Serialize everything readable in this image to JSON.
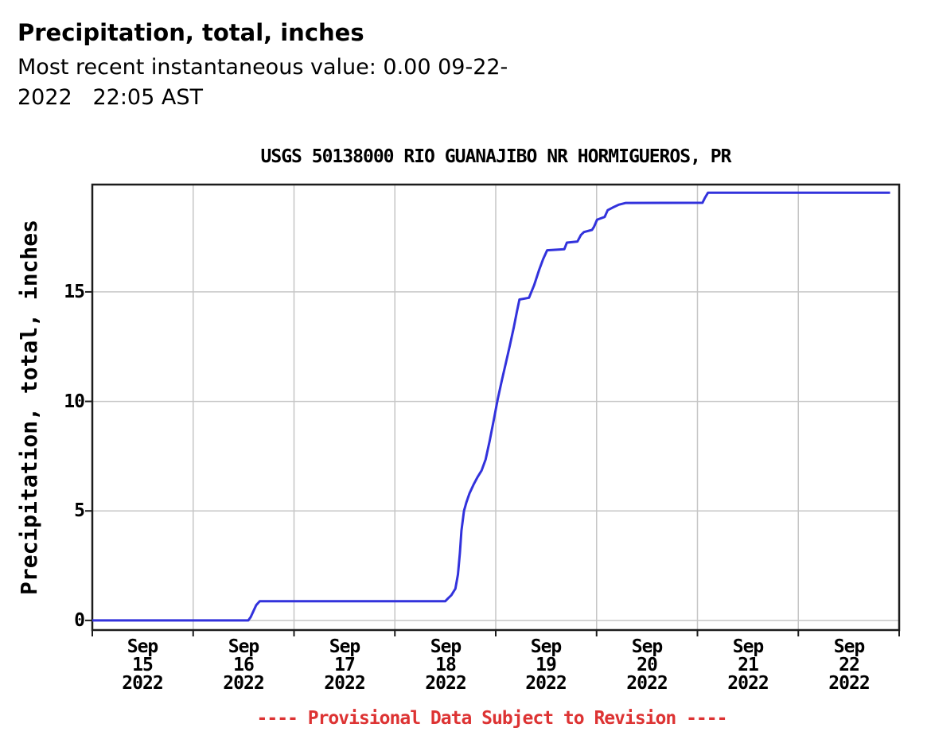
{
  "header": {
    "title": "Precipitation, total, inches",
    "subtitle_line1": "Most recent instantaneous value: 0.00 09-22-",
    "subtitle_line2": "2022   22:05 AST"
  },
  "chart_data": {
    "type": "line",
    "title": "USGS 50138000 RIO GUANAJIBO NR HORMIGUEROS, PR",
    "ylabel": "Precipitation, total, inches",
    "footer_note": "---- Provisional Data Subject to Revision ----",
    "x_start": "Sep 15 2022 00:00",
    "x_unit": "days",
    "xlim": [
      0,
      8
    ],
    "ylim": [
      -0.44,
      19.9
    ],
    "grid": true,
    "y_ticks": [
      0,
      5,
      10,
      15
    ],
    "y_tick_labels": [
      "0",
      "5",
      "10",
      "15"
    ],
    "x_gridline_days": [
      1,
      2,
      3,
      4,
      5,
      6,
      7
    ],
    "x_axis_tick_days": [
      0,
      1,
      2,
      3,
      4,
      5,
      6,
      7,
      8
    ],
    "x_tick_labels": [
      {
        "line1": "Sep",
        "line2": "15",
        "line3": "2022"
      },
      {
        "line1": "Sep",
        "line2": "16",
        "line3": "2022"
      },
      {
        "line1": "Sep",
        "line2": "17",
        "line3": "2022"
      },
      {
        "line1": "Sep",
        "line2": "18",
        "line3": "2022"
      },
      {
        "line1": "Sep",
        "line2": "19",
        "line3": "2022"
      },
      {
        "line1": "Sep",
        "line2": "20",
        "line3": "2022"
      },
      {
        "line1": "Sep",
        "line2": "21",
        "line3": "2022"
      },
      {
        "line1": "Sep",
        "line2": "22",
        "line3": "2022"
      }
    ],
    "colors": {
      "line": "#3232dc",
      "grid": "#c6c6c6",
      "frame": "#1c1c1c",
      "provisional": "#dd3333"
    },
    "series": [
      {
        "name": "Precipitation, total, cumulative inches",
        "points": [
          [
            0.0,
            0.0
          ],
          [
            1.546,
            0.0
          ],
          [
            1.57,
            0.15
          ],
          [
            1.6,
            0.45
          ],
          [
            1.625,
            0.7
          ],
          [
            1.66,
            0.88
          ],
          [
            3.5,
            0.88
          ],
          [
            3.53,
            1.02
          ],
          [
            3.56,
            1.15
          ],
          [
            3.6,
            1.45
          ],
          [
            3.625,
            2.1
          ],
          [
            3.645,
            3.1
          ],
          [
            3.66,
            4.1
          ],
          [
            3.685,
            5.0
          ],
          [
            3.71,
            5.4
          ],
          [
            3.74,
            5.8
          ],
          [
            3.78,
            6.2
          ],
          [
            3.82,
            6.55
          ],
          [
            3.86,
            6.85
          ],
          [
            3.9,
            7.35
          ],
          [
            3.94,
            8.2
          ],
          [
            3.98,
            9.15
          ],
          [
            4.02,
            10.1
          ],
          [
            4.06,
            10.95
          ],
          [
            4.1,
            11.75
          ],
          [
            4.14,
            12.55
          ],
          [
            4.18,
            13.4
          ],
          [
            4.21,
            14.1
          ],
          [
            4.235,
            14.65
          ],
          [
            4.33,
            14.73
          ],
          [
            4.38,
            15.3
          ],
          [
            4.43,
            16.0
          ],
          [
            4.47,
            16.5
          ],
          [
            4.51,
            16.9
          ],
          [
            4.68,
            16.95
          ],
          [
            4.705,
            17.25
          ],
          [
            4.81,
            17.3
          ],
          [
            4.845,
            17.6
          ],
          [
            4.875,
            17.73
          ],
          [
            4.955,
            17.83
          ],
          [
            4.975,
            17.98
          ],
          [
            5.005,
            18.3
          ],
          [
            5.08,
            18.42
          ],
          [
            5.11,
            18.73
          ],
          [
            5.16,
            18.85
          ],
          [
            5.22,
            18.98
          ],
          [
            5.29,
            19.06
          ],
          [
            6.05,
            19.07
          ],
          [
            6.075,
            19.3
          ],
          [
            6.105,
            19.53
          ],
          [
            7.91,
            19.53
          ]
        ]
      }
    ]
  }
}
